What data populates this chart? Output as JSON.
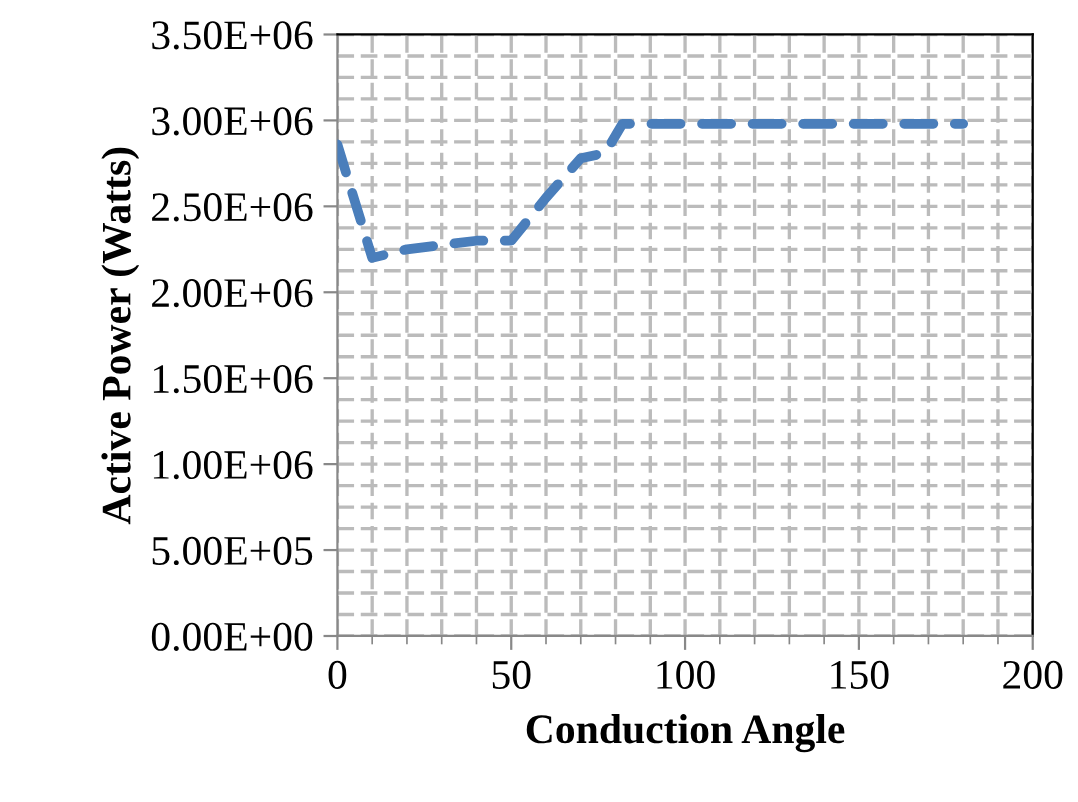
{
  "chart_data": {
    "type": "line",
    "xlabel": "Conduction Angle",
    "ylabel": "Active Power (Watts)",
    "series": [
      {
        "color": "#4a7ebb",
        "x": [
          0,
          10,
          20,
          40,
          50,
          60,
          70,
          77,
          82,
          100,
          120,
          140,
          160,
          180
        ],
        "values": [
          2860000,
          2200000,
          2250000,
          2300000,
          2300000,
          2550000,
          2780000,
          2810000,
          2980000,
          2980000,
          2980000,
          2980000,
          2980000,
          2980000
        ]
      }
    ],
    "xlim": [
      0,
      200
    ],
    "xticks": [
      0,
      50,
      100,
      150,
      200
    ],
    "ylim": [
      0,
      3500000
    ],
    "yticks": [
      {
        "value": 0,
        "label": "0.00E+00"
      },
      {
        "value": 500000,
        "label": "5.00E+05"
      },
      {
        "value": 1000000,
        "label": "1.00E+06"
      },
      {
        "value": 1500000,
        "label": "1.50E+06"
      },
      {
        "value": 2000000,
        "label": "2.00E+06"
      },
      {
        "value": 2500000,
        "label": "2.50E+06"
      },
      {
        "value": 3000000,
        "label": "3.00E+06"
      },
      {
        "value": 3500000,
        "label": "3.50E+06"
      }
    ],
    "grid": true,
    "line_style": "dashed",
    "marker": "none"
  }
}
